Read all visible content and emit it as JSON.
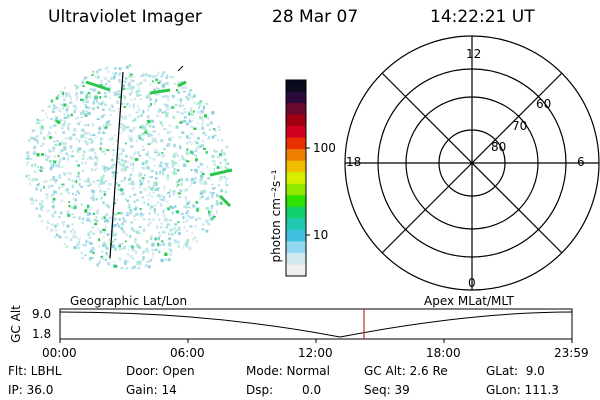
{
  "header": {
    "instrument": "Ultraviolet Imager",
    "date": "28 Mar 07",
    "time": "14:22:21 UT"
  },
  "colorbar": {
    "unit_label": "photon cm⁻²s⁻¹",
    "ticks": [
      "100",
      "10"
    ],
    "colors": [
      "#0a0a1e",
      "#2a0a3a",
      "#6a0a30",
      "#a00010",
      "#d0001e",
      "#e83000",
      "#f08000",
      "#f0c000",
      "#d8f000",
      "#90e800",
      "#30e000",
      "#10d070",
      "#20c8b0",
      "#40c0e0",
      "#90d8f0",
      "#d0e8f0",
      "#f0f0f0"
    ]
  },
  "polar_plot": {
    "mlt_labels": {
      "top": "12",
      "left": "18",
      "right": "6",
      "bottom": "0"
    },
    "lat_labels": [
      "60",
      "70",
      "80"
    ]
  },
  "orbit_plot": {
    "left_title": "Geographic Lat/Lon",
    "right_title": "Apex MLat/MLT",
    "ylabel": "GC Alt",
    "y_ticks": [
      "9.0",
      "1.8"
    ],
    "x_ticks": [
      "00:00",
      "06:00",
      "12:00",
      "18:00",
      "23:59"
    ]
  },
  "info": {
    "flt": "Flt: LBHL",
    "ip": "IP: 36.0",
    "door": "Door: Open",
    "gain": "Gain: 14",
    "mode": "Mode: Normal",
    "dsp_label": "Dsp:",
    "dsp_value": "0.0",
    "gc_alt": "GC Alt: 2.6 Re",
    "seq": "Seq: 39",
    "glat": "GLat:  9.0",
    "glon": "GLon: 111.3"
  }
}
